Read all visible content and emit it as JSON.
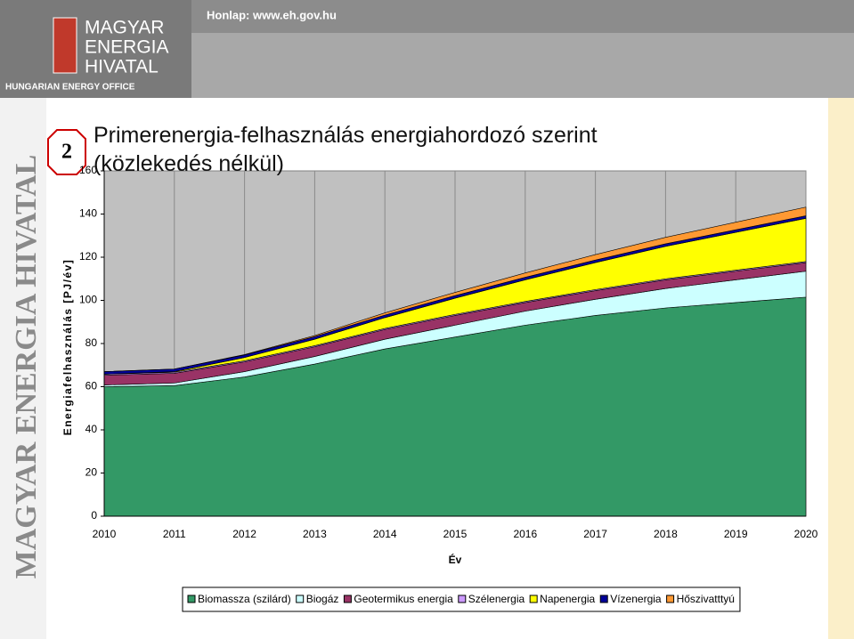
{
  "header": {
    "website": "Honlap: www.eh.gov.hu",
    "logo": [
      "MAGYAR",
      "ENERGIA",
      "HIVATAL"
    ],
    "logo_subtitle": "HUNGARIAN ENERGY OFFICE",
    "side_text": "MAGYAR ENERGIA HIVATAL",
    "slide_number": "2"
  },
  "chart_data": {
    "type": "area",
    "title": "Primerenergia-felhasználás energiahordozó szerint (közlekedés nélkül)",
    "ylabel": "Energiafelhasználás [PJ/év]",
    "xlabel": "Év",
    "categories": [
      "2010",
      "2011",
      "2012",
      "2013",
      "2014",
      "2015",
      "2016",
      "2017",
      "2018",
      "2019",
      "2020"
    ],
    "series": [
      {
        "name": "Biomassza (szilárd)",
        "color": "#339966",
        "values": [
          60,
          60.5,
          64.5,
          70.5,
          77.5,
          83,
          88.5,
          93,
          96.5,
          99,
          101.5
        ]
      },
      {
        "name": "Biogáz",
        "color": "#ccffff",
        "values": [
          0.8,
          1.2,
          2.5,
          3.5,
          4.5,
          5.5,
          6.5,
          7.5,
          9,
          10.5,
          12
        ]
      },
      {
        "name": "Geotermikus energia",
        "color": "#993366",
        "values": [
          4.5,
          4.5,
          4.5,
          4.5,
          4.5,
          4.5,
          4,
          4,
          4,
          4,
          4
        ]
      },
      {
        "name": "Szélenergia",
        "color": "#cc99ff",
        "values": [
          0.5,
          0.5,
          0.5,
          0.5,
          0.5,
          0.5,
          0.5,
          0.5,
          0.5,
          0.5,
          0.5
        ]
      },
      {
        "name": "Napenergia",
        "color": "#ffff00",
        "values": [
          0,
          0.3,
          1.5,
          3,
          5,
          7.5,
          10,
          12.5,
          15,
          17.5,
          20
        ]
      },
      {
        "name": "Vízenergia",
        "color": "#000099",
        "values": [
          1.2,
          1.2,
          1.2,
          1.2,
          1.2,
          1.2,
          1.2,
          1.2,
          1.2,
          1.2,
          1.2
        ]
      },
      {
        "name": "Hőszivatttyú",
        "color": "#ff9933",
        "values": [
          0,
          0,
          0.2,
          0.5,
          1,
          1.5,
          2,
          2.5,
          3,
          3.5,
          4
        ]
      }
    ],
    "ylim": [
      0,
      160
    ],
    "yticks": [
      0,
      20,
      40,
      60,
      80,
      100,
      120,
      140,
      160
    ],
    "legend": "bottom"
  }
}
